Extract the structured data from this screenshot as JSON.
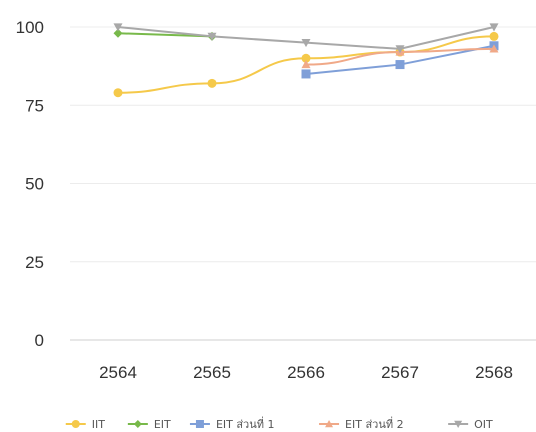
{
  "chart_data": {
    "type": "line",
    "title": "",
    "xlabel": "",
    "ylabel": "",
    "categories": [
      "2564",
      "2565",
      "2566",
      "2567",
      "2568"
    ],
    "ylim": [
      0,
      100
    ],
    "yticks": [
      0,
      25,
      50,
      75,
      100
    ],
    "grid": true,
    "legend_position": "bottom",
    "series": [
      {
        "name": "IIT",
        "color": "#f5c94a",
        "marker": "circle",
        "smooth": true,
        "values": [
          79,
          82,
          90,
          92,
          97
        ]
      },
      {
        "name": "EIT",
        "color": "#78b94a",
        "marker": "diamond",
        "smooth": false,
        "values": [
          98,
          97,
          null,
          null,
          null
        ]
      },
      {
        "name": "EIT ส่วนที่ 1",
        "color": "#7f9fd8",
        "marker": "square",
        "smooth": false,
        "values": [
          null,
          null,
          85,
          88,
          94
        ]
      },
      {
        "name": "EIT ส่วนที่ 2",
        "color": "#f0a988",
        "marker": "triangle-up",
        "smooth": true,
        "values": [
          null,
          null,
          88,
          92,
          93
        ]
      },
      {
        "name": "OIT",
        "color": "#a8a8a8",
        "marker": "triangle-down",
        "smooth": false,
        "values": [
          100,
          97,
          95,
          93,
          100
        ]
      }
    ]
  }
}
